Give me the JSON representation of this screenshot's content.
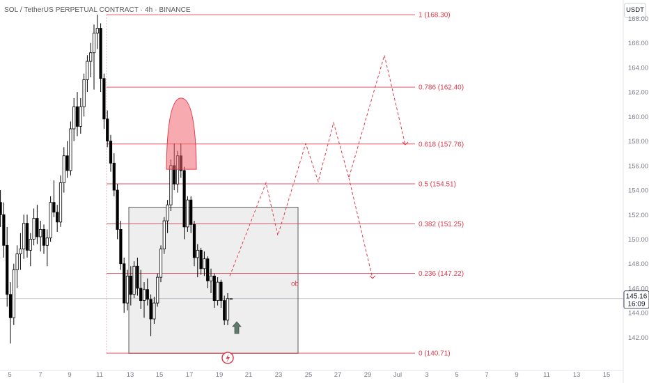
{
  "header": {
    "symbol": "SOL / TetherUS PERPETUAL CONTRACT",
    "timeframe": "4h",
    "exchange": "BINANCE",
    "currency": "USDT"
  },
  "colors": {
    "bull": "#ffffff",
    "bear": "#000000",
    "fib": "#e0394a",
    "box": "#555555",
    "box_fill": "rgba(120,120,130,0.13)",
    "dome": "rgba(240,100,110,0.55)",
    "arrow": "#5f7a6c"
  },
  "chart_data": {
    "type": "candlestick",
    "ylim": [
      139.3,
      169.5
    ],
    "y_ticks": [
      142,
      144,
      146,
      148,
      150,
      152,
      154,
      156,
      158,
      160,
      162,
      164,
      166,
      168
    ],
    "x_axis_labels": [
      "5",
      "7",
      "9",
      "11",
      "13",
      "15",
      "17",
      "19",
      "21",
      "23",
      "25",
      "27",
      "29",
      "Jul",
      "3",
      "5",
      "7",
      "9",
      "11",
      "13",
      "15"
    ],
    "current_price": "145.16",
    "countdown": "16:09",
    "current_price_value": 145.16,
    "fib_levels": [
      {
        "label": "1 (168.30)",
        "value": 168.3
      },
      {
        "label": "0.786 (162.40)",
        "value": 162.4
      },
      {
        "label": "0.618 (157.76)",
        "value": 157.76
      },
      {
        "label": "0.5 (154.51)",
        "value": 154.51
      },
      {
        "label": "0.382 (151.25)",
        "value": 151.25
      },
      {
        "label": "0.236 (147.22)",
        "value": 147.22
      },
      {
        "label": "0 (140.71)",
        "value": 140.71
      }
    ],
    "order_block": {
      "label": "ob",
      "top": 152.6,
      "bottom": 140.7
    },
    "projection_path": [
      147.0,
      154.6,
      150.3,
      157.8,
      154.7,
      159.5,
      155.0,
      165.0,
      157.7
    ],
    "projection_branch": [
      155.0,
      146.8
    ],
    "bar_count": 98,
    "candles": [
      [
        155.7,
        157.2,
        152.1,
        156.8
      ],
      [
        156.8,
        157.0,
        153.5,
        154.2
      ],
      [
        154.2,
        155.8,
        152.4,
        153.0
      ],
      [
        153.0,
        154.0,
        151.0,
        152.0
      ],
      [
        152.0,
        153.0,
        148.5,
        149.5
      ],
      [
        149.5,
        151.0,
        144.5,
        145.5
      ],
      [
        145.5,
        146.5,
        141.5,
        143.6
      ],
      [
        143.6,
        148.0,
        143.0,
        147.5
      ],
      [
        147.5,
        149.5,
        146.0,
        148.8
      ],
      [
        148.8,
        150.5,
        147.5,
        149.2
      ],
      [
        149.2,
        152.0,
        148.4,
        151.3
      ],
      [
        151.3,
        152.0,
        148.5,
        149.1
      ],
      [
        149.1,
        150.5,
        147.8,
        150.0
      ],
      [
        150.0,
        152.5,
        149.5,
        151.7
      ],
      [
        151.7,
        152.8,
        149.6,
        150.2
      ],
      [
        150.2,
        151.5,
        149.0,
        150.8
      ],
      [
        150.8,
        151.2,
        148.8,
        149.5
      ],
      [
        149.5,
        150.8,
        147.8,
        150.1
      ],
      [
        150.1,
        153.5,
        149.8,
        153.0
      ],
      [
        153.0,
        154.8,
        151.8,
        152.2
      ],
      [
        152.2,
        152.8,
        150.6,
        151.4
      ],
      [
        151.4,
        155.2,
        151.0,
        154.6
      ],
      [
        154.6,
        157.5,
        153.8,
        156.8
      ],
      [
        156.8,
        158.0,
        155.0,
        155.6
      ],
      [
        155.6,
        159.6,
        155.2,
        159.0
      ],
      [
        159.0,
        161.5,
        158.0,
        160.8
      ],
      [
        160.8,
        162.0,
        158.4,
        159.2
      ],
      [
        159.2,
        161.5,
        158.6,
        160.8
      ],
      [
        160.8,
        163.5,
        160.0,
        163.0
      ],
      [
        163.0,
        165.0,
        162.0,
        164.5
      ],
      [
        164.5,
        166.0,
        163.2,
        165.2
      ],
      [
        165.2,
        167.5,
        162.2,
        166.8
      ],
      [
        166.8,
        168.3,
        165.5,
        167.2
      ],
      [
        167.2,
        167.6,
        162.0,
        163.1
      ],
      [
        163.1,
        163.5,
        159.0,
        159.8
      ],
      [
        159.8,
        160.5,
        157.5,
        158.0
      ],
      [
        158.0,
        158.5,
        155.5,
        156.2
      ],
      [
        156.2,
        157.0,
        153.5,
        154.0
      ],
      [
        154.0,
        154.5,
        150.0,
        150.8
      ],
      [
        150.8,
        151.5,
        147.5,
        148.0
      ],
      [
        148.0,
        148.5,
        144.0,
        144.8
      ],
      [
        144.8,
        147.5,
        144.2,
        147.0
      ],
      [
        147.0,
        147.8,
        144.6,
        145.5
      ],
      [
        145.5,
        148.2,
        145.2,
        147.8
      ],
      [
        147.8,
        148.5,
        145.4,
        146.0
      ],
      [
        146.0,
        147.5,
        144.3,
        145.0
      ],
      [
        145.0,
        146.5,
        143.6,
        145.9
      ],
      [
        145.9,
        146.8,
        144.6,
        145.1
      ],
      [
        145.1,
        145.5,
        142.1,
        143.5
      ],
      [
        143.5,
        145.3,
        143.1,
        144.8
      ],
      [
        144.8,
        147.2,
        144.5,
        146.9
      ],
      [
        146.9,
        149.5,
        146.5,
        149.2
      ],
      [
        149.2,
        151.8,
        148.8,
        151.5
      ],
      [
        151.5,
        153.2,
        150.5,
        152.8
      ],
      [
        152.8,
        156.5,
        152.3,
        156.0
      ],
      [
        156.0,
        157.8,
        154.0,
        154.5
      ],
      [
        154.5,
        157.2,
        153.8,
        156.8
      ],
      [
        156.8,
        157.8,
        155.0,
        155.6
      ],
      [
        155.6,
        155.9,
        150.0,
        151.0
      ],
      [
        151.0,
        153.5,
        150.6,
        153.2
      ],
      [
        153.2,
        153.5,
        150.5,
        151.2
      ],
      [
        151.2,
        151.5,
        147.8,
        148.5
      ],
      [
        148.5,
        149.6,
        146.9,
        149.1
      ],
      [
        149.1,
        149.3,
        147.1,
        147.6
      ],
      [
        147.6,
        149.0,
        147.0,
        148.4
      ],
      [
        148.4,
        148.6,
        146.0,
        146.6
      ],
      [
        146.6,
        147.6,
        145.6,
        147.0
      ],
      [
        147.0,
        147.2,
        144.4,
        145.0
      ],
      [
        145.0,
        146.9,
        144.6,
        146.5
      ],
      [
        146.5,
        146.7,
        144.4,
        145.0
      ],
      [
        145.0,
        145.4,
        143.0,
        143.4
      ],
      [
        143.4,
        145.6,
        143.0,
        145.16
      ],
      [
        145.16,
        145.16,
        145.16,
        145.16
      ],
      [
        145.16,
        145.16,
        145.16,
        145.16
      ],
      [
        145.16,
        145.16,
        145.16,
        145.16
      ]
    ]
  }
}
